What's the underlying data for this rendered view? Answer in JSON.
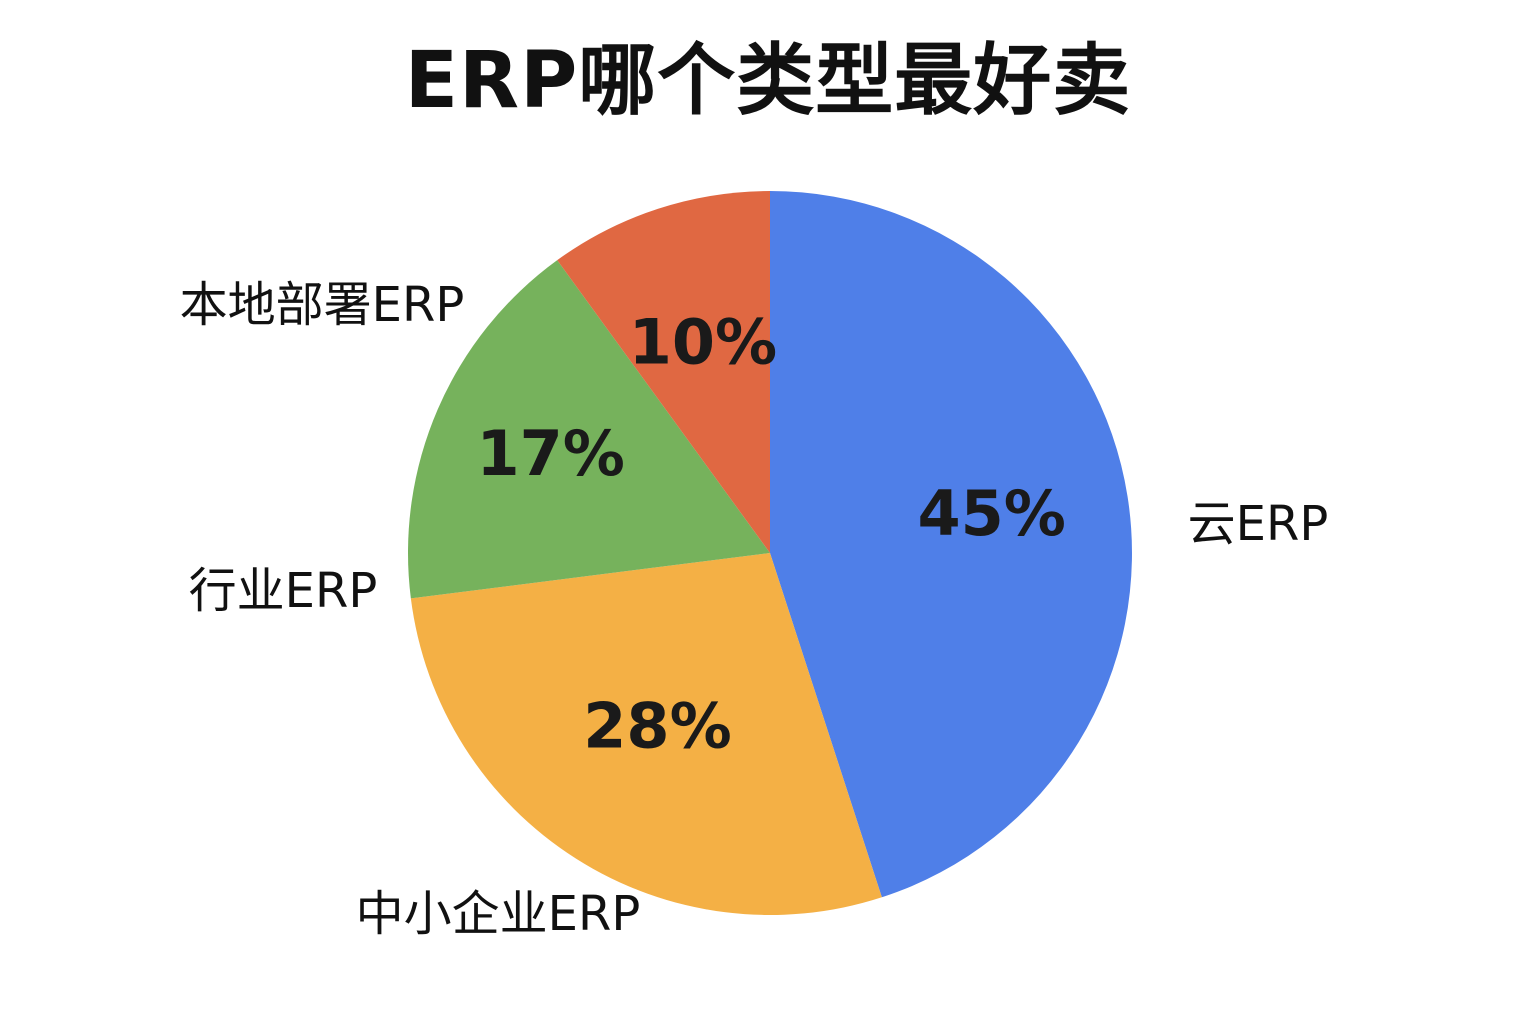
{
  "chart_data": {
    "type": "pie",
    "title": "ERP哪个类型最好卖",
    "slices": [
      {
        "label": "云ERP",
        "value": 45,
        "value_label": "45%",
        "color": "#4F7FE8"
      },
      {
        "label": "中小企业ERP",
        "value": 28,
        "value_label": "28%",
        "color": "#F4B045"
      },
      {
        "label": "行业ERP",
        "value": 17,
        "value_label": "17%",
        "color": "#76B25C"
      },
      {
        "label": "本地部署ERP",
        "value": 10,
        "value_label": "10%",
        "color": "#E06842"
      }
    ],
    "start_angle": "12 o'clock",
    "direction": "clockwise",
    "legend": "none"
  }
}
